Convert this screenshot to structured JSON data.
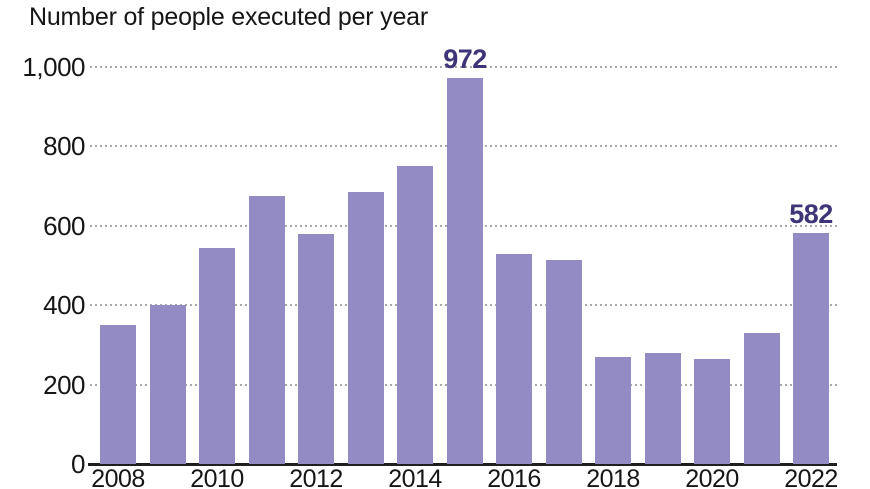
{
  "chart": {
    "title": "Number of people executed per year",
    "colors": {
      "background": "#ffffff",
      "bar": "#938bc3",
      "value_label": "#3d3577",
      "axis_text": "#161616",
      "axis_line": "#1f1f1f",
      "gridline": "#a9a9a9"
    }
  },
  "chart_data": {
    "type": "bar",
    "title": "Number of people executed per year",
    "xlabel": "",
    "ylabel": "",
    "x": [
      2008,
      2009,
      2010,
      2011,
      2012,
      2013,
      2014,
      2015,
      2016,
      2017,
      2018,
      2019,
      2020,
      2021,
      2022
    ],
    "values": [
      350,
      400,
      545,
      675,
      580,
      685,
      750,
      972,
      530,
      515,
      270,
      280,
      265,
      330,
      582
    ],
    "data_labels": [
      {
        "x": 2015,
        "text": "972"
      },
      {
        "x": 2022,
        "text": "582"
      }
    ],
    "y_ticks": [
      {
        "value": 0,
        "label": "0"
      },
      {
        "value": 200,
        "label": "200"
      },
      {
        "value": 400,
        "label": "400"
      },
      {
        "value": 600,
        "label": "600"
      },
      {
        "value": 800,
        "label": "800"
      },
      {
        "value": 1000,
        "label": "1,000"
      }
    ],
    "x_tick_labels": [
      "2008",
      "2010",
      "2012",
      "2014",
      "2016",
      "2018",
      "2020",
      "2022"
    ],
    "ylim": [
      0,
      1000
    ],
    "grid": "horizontal-dotted",
    "legend": "none"
  }
}
